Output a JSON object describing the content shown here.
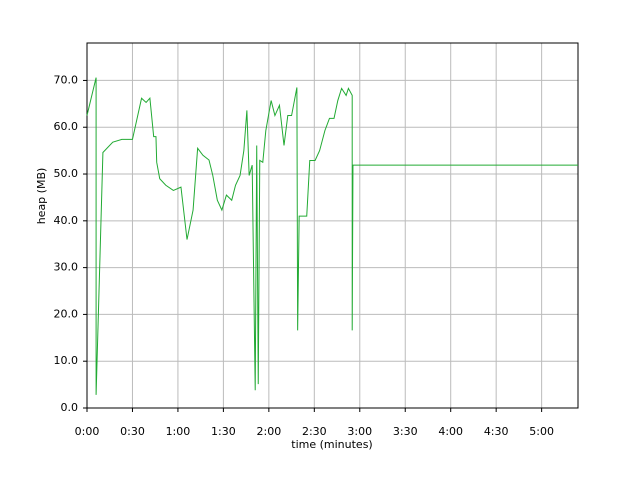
{
  "chart_data": {
    "type": "line",
    "xlabel": "time (minutes)",
    "ylabel": "heap (MB)",
    "x": [
      0,
      6,
      6,
      10.5,
      17,
      23,
      30,
      36,
      39,
      41.5,
      44,
      45.5,
      46,
      48,
      52,
      57,
      62,
      66,
      70,
      73,
      76.5,
      80.5,
      83,
      86,
      89,
      92,
      95.5,
      98,
      101,
      103.5,
      105.5,
      107,
      109,
      111,
      112,
      113,
      114,
      116,
      118,
      121.5,
      124,
      127,
      130,
      132.5,
      135,
      138.5,
      139,
      140,
      145,
      147,
      150.5,
      153.5,
      157,
      160,
      163,
      165.5,
      168,
      171,
      172.5,
      175,
      175,
      175.5,
      324
    ],
    "series": [
      {
        "name": "heap",
        "color": "#22aa33",
        "values": [
          62.5,
          70.6,
          2.8,
          54.6,
          56.8,
          57.4,
          57.4,
          66.2,
          65.3,
          66.2,
          58,
          58,
          52.5,
          49,
          47.6,
          46.5,
          47.2,
          36,
          42.3,
          55.5,
          54,
          53,
          49.7,
          44.4,
          42.3,
          45.5,
          44.4,
          47.6,
          49.7,
          55,
          63.6,
          49.7,
          51.9,
          3.8,
          56.1,
          5.1,
          52.9,
          52.5,
          59.3,
          65.7,
          62.5,
          64.7,
          56.1,
          62.5,
          62.5,
          68.5,
          16.6,
          41,
          41,
          52.9,
          52.9,
          55,
          59.3,
          61.9,
          61.9,
          65.7,
          68.3,
          66.8,
          68.3,
          66.8,
          16.6,
          51.9,
          51.9
        ]
      }
    ],
    "xlim": [
      0,
      324
    ],
    "xticks": [
      {
        "value": 0,
        "label": "0:00"
      },
      {
        "value": 30,
        "label": "0:30"
      },
      {
        "value": 60,
        "label": "1:00"
      },
      {
        "value": 90,
        "label": "1:30"
      },
      {
        "value": 120,
        "label": "2:00"
      },
      {
        "value": 150,
        "label": "2:30"
      },
      {
        "value": 180,
        "label": "3:00"
      },
      {
        "value": 210,
        "label": "3:30"
      },
      {
        "value": 240,
        "label": "4:00"
      },
      {
        "value": 270,
        "label": "4:30"
      },
      {
        "value": 300,
        "label": "5:00"
      }
    ],
    "ylim": [
      0,
      78
    ],
    "yticks": [
      {
        "value": 0,
        "label": "0.0"
      },
      {
        "value": 10,
        "label": "10.0"
      },
      {
        "value": 20,
        "label": "20.0"
      },
      {
        "value": 30,
        "label": "30.0"
      },
      {
        "value": 40,
        "label": "40.0"
      },
      {
        "value": 50,
        "label": "50.0"
      },
      {
        "value": 60,
        "label": "60.0"
      },
      {
        "value": 70,
        "label": "70.0"
      }
    ],
    "grid": true
  }
}
